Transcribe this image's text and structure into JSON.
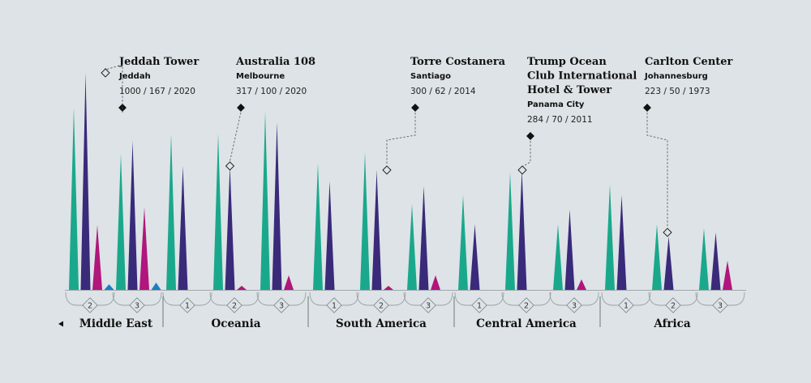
{
  "colors": {
    "teal": "#1aa88c",
    "navy": "#3a2a7a",
    "magenta": "#b0167c",
    "blue": "#1f7cc4",
    "ink": "#111111",
    "background": "#dde3e6"
  },
  "chart_data": {
    "type": "bar",
    "groups": [
      {
        "region": "Middle East",
        "slot": "2",
        "spikes": [
          {
            "color": "teal",
            "height": 225
          },
          {
            "color": "navy",
            "height": 268
          },
          {
            "color": "magenta",
            "height": 80
          },
          {
            "color": "blue",
            "height": 7
          }
        ]
      },
      {
        "region": "Middle East",
        "slot": "3",
        "spikes": [
          {
            "color": "teal",
            "height": 168
          },
          {
            "color": "navy",
            "height": 184
          },
          {
            "color": "magenta",
            "height": 102
          },
          {
            "color": "blue",
            "height": 9
          }
        ]
      },
      {
        "region": "Oceania",
        "slot": "1",
        "spikes": [
          {
            "color": "teal",
            "height": 192
          },
          {
            "color": "navy",
            "height": 153
          }
        ]
      },
      {
        "region": "Oceania",
        "slot": "2",
        "spikes": [
          {
            "color": "teal",
            "height": 193
          },
          {
            "color": "navy",
            "height": 153
          },
          {
            "color": "magenta",
            "height": 5
          }
        ]
      },
      {
        "region": "Oceania",
        "slot": "3",
        "spikes": [
          {
            "color": "teal",
            "height": 220
          },
          {
            "color": "navy",
            "height": 207
          },
          {
            "color": "magenta",
            "height": 18
          }
        ]
      },
      {
        "region": "South America",
        "slot": "1",
        "spikes": [
          {
            "color": "teal",
            "height": 156
          },
          {
            "color": "navy",
            "height": 134
          }
        ]
      },
      {
        "region": "South America",
        "slot": "2",
        "spikes": [
          {
            "color": "teal",
            "height": 170
          },
          {
            "color": "navy",
            "height": 148
          },
          {
            "color": "magenta",
            "height": 5
          }
        ]
      },
      {
        "region": "South America",
        "slot": "3",
        "spikes": [
          {
            "color": "teal",
            "height": 106
          },
          {
            "color": "navy",
            "height": 128
          },
          {
            "color": "magenta",
            "height": 18
          }
        ]
      },
      {
        "region": "Central America",
        "slot": "1",
        "spikes": [
          {
            "color": "teal",
            "height": 117
          },
          {
            "color": "navy",
            "height": 81
          }
        ]
      },
      {
        "region": "Central America",
        "slot": "2",
        "spikes": [
          {
            "color": "teal",
            "height": 145
          },
          {
            "color": "navy",
            "height": 148
          }
        ]
      },
      {
        "region": "Central America",
        "slot": "3",
        "spikes": [
          {
            "color": "teal",
            "height": 81
          },
          {
            "color": "navy",
            "height": 99
          },
          {
            "color": "magenta",
            "height": 13
          }
        ]
      },
      {
        "region": "Africa",
        "slot": "1",
        "spikes": [
          {
            "color": "teal",
            "height": 130
          },
          {
            "color": "navy",
            "height": 117
          }
        ]
      },
      {
        "region": "Africa",
        "slot": "2",
        "spikes": [
          {
            "color": "teal",
            "height": 81
          },
          {
            "color": "navy",
            "height": 66
          }
        ]
      },
      {
        "region": "Africa",
        "slot": "3",
        "spikes": [
          {
            "color": "teal",
            "height": 76
          },
          {
            "color": "navy",
            "height": 71
          },
          {
            "color": "magenta",
            "height": 36
          }
        ]
      }
    ],
    "regions": [
      "Middle East",
      "Oceania",
      "South America",
      "Central America",
      "Africa"
    ],
    "annotations": [
      {
        "title": [
          "Jeddah Tower"
        ],
        "city": "Jeddah",
        "stats": "1000 / 167 / 2020",
        "group": 0
      },
      {
        "title": [
          "Australia 108"
        ],
        "city": "Melbourne",
        "stats": "317 / 100 / 2020",
        "group": 3
      },
      {
        "title": [
          "Torre Costanera"
        ],
        "city": "Santiago",
        "stats": "300 / 62 / 2014",
        "group": 6
      },
      {
        "title": [
          "Trump Ocean",
          "Club International",
          "Hotel & Tower"
        ],
        "city": "Panama City",
        "stats": "284 / 70 / 2011",
        "group": 9
      },
      {
        "title": [
          "Carlton Center"
        ],
        "city": "Johannesburg",
        "stats": "223 / 50 / 1973",
        "group": 13
      }
    ]
  }
}
